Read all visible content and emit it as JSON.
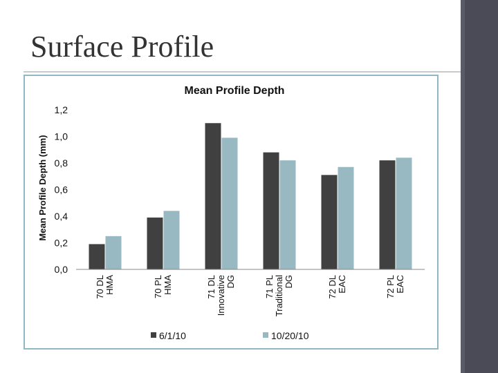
{
  "slide": {
    "title": "Surface Profile"
  },
  "colors": {
    "series1": "#404040",
    "series2": "#98b9c2",
    "frame": "#8fb8c4",
    "band": "#4a4b57"
  },
  "chart_data": {
    "type": "bar",
    "title": "Mean Profile Depth",
    "xlabel": "",
    "ylabel": "Mean Profile Depth (mm)",
    "ylim": [
      0,
      1.2
    ],
    "yticks": [
      "0,0",
      "0,2",
      "0,4",
      "0,6",
      "0,8",
      "1,0",
      "1,2"
    ],
    "grid": false,
    "legend": "bottom",
    "categories": [
      [
        "70 DL",
        "HMA"
      ],
      [
        "70 PL",
        "HMA"
      ],
      [
        "71 DL",
        "Innovative",
        "DG"
      ],
      [
        "71 PL",
        "Traditional",
        "DG"
      ],
      [
        "72 DL",
        "EAC"
      ],
      [
        "72 PL",
        "EAC"
      ]
    ],
    "series": [
      {
        "name": "6/1/10",
        "values": [
          0.19,
          0.39,
          1.1,
          0.88,
          0.71,
          0.82
        ]
      },
      {
        "name": "10/20/10",
        "values": [
          0.25,
          0.44,
          0.99,
          0.82,
          0.77,
          0.84
        ]
      }
    ]
  }
}
